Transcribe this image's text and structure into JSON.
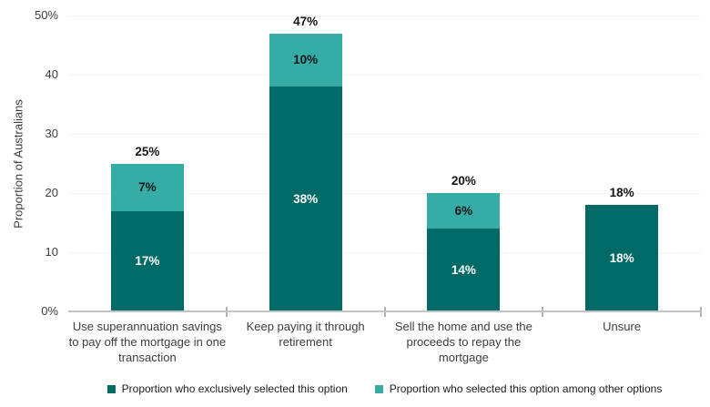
{
  "chart_data": {
    "type": "bar",
    "stacked": true,
    "title": "",
    "xlabel": "",
    "ylabel": "Proportion of Australians",
    "ylim": [
      0,
      50
    ],
    "grid": true,
    "legend_position": "bottom",
    "categories": [
      "Use superannuation savings to pay off the mortgage in one transaction",
      "Keep paying it through retirement",
      "Sell the home and use the proceeds to repay the mortgage",
      "Unsure"
    ],
    "series": [
      {
        "name": "Proportion who exclusively selected this option",
        "color": "#006A66",
        "label_color": "#ffffff",
        "values": [
          17,
          38,
          14,
          18
        ],
        "labels": [
          "17%",
          "38%",
          "14%",
          "18%"
        ]
      },
      {
        "name": "Proportion who selected this option among other options",
        "color": "#36ACA7",
        "label_color": "#161616",
        "values": [
          7,
          10,
          6,
          0
        ],
        "labels": [
          "7%",
          "10%",
          "6%",
          ""
        ]
      }
    ],
    "totals": [
      25,
      47,
      20,
      18
    ],
    "total_labels": [
      "25%",
      "47%",
      "20%",
      "18%"
    ],
    "yticks": [
      {
        "value": 0,
        "label": "0%"
      },
      {
        "value": 10,
        "label": "10"
      },
      {
        "value": 20,
        "label": "20"
      },
      {
        "value": 30,
        "label": "30"
      },
      {
        "value": 40,
        "label": "40"
      },
      {
        "value": 50,
        "label": "50%"
      }
    ]
  }
}
